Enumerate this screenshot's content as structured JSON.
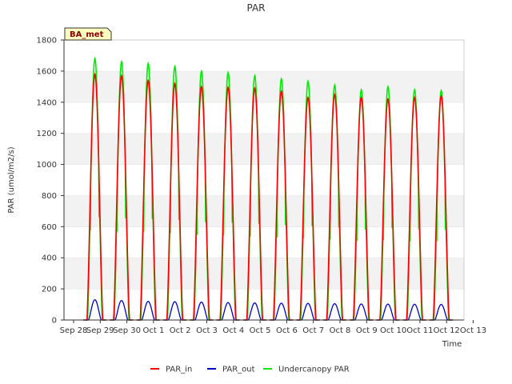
{
  "chart_data": {
    "type": "line",
    "title": "PAR",
    "xlabel": "Time",
    "ylabel": "PAR (umol/m2/s)",
    "badge": "BA_met",
    "x_tick_labels": [
      "Sep 28",
      "Sep 29",
      "Sep 30",
      "Oct 1",
      "Oct 2",
      "Oct 3",
      "Oct 4",
      "Oct 5",
      "Oct 6",
      "Oct 7",
      "Oct 8",
      "Oct 9",
      "Oct 10",
      "Oct 11",
      "Oct 12",
      "Oct 13"
    ],
    "y_ticks": [
      0,
      200,
      400,
      600,
      800,
      1000,
      1200,
      1400,
      1600,
      1800
    ],
    "ylim": [
      0,
      1800
    ],
    "xlim_days": [
      0,
      15
    ],
    "grid": "horizontal bands",
    "legend_position": "bottom",
    "series": [
      {
        "name": "PAR_in",
        "color": "#ff0000",
        "daily_peak_day": [
          0.8,
          1.8,
          2.8,
          3.8,
          4.8,
          5.8,
          6.8,
          7.8,
          8.8,
          9.8,
          10.8,
          11.8,
          12.8,
          13.8
        ],
        "daily_peak_value": [
          1580,
          1570,
          1540,
          1520,
          1500,
          1495,
          1490,
          1470,
          1430,
          1450,
          1430,
          1420,
          1430,
          1440
        ]
      },
      {
        "name": "PAR_out",
        "color": "#0000cc",
        "daily_peak_day": [
          0.8,
          1.8,
          2.8,
          3.8,
          4.8,
          5.8,
          6.8,
          7.8,
          8.8,
          9.8,
          10.8,
          11.8,
          12.8,
          13.8
        ],
        "daily_peak_value": [
          130,
          125,
          120,
          118,
          115,
          112,
          110,
          108,
          107,
          105,
          103,
          102,
          101,
          100
        ]
      },
      {
        "name": "Undercanopy PAR",
        "color": "#00ee00",
        "daily_peak_day": [
          0.8,
          1.8,
          2.8,
          3.8,
          4.8,
          5.8,
          6.8,
          7.8,
          8.8,
          9.8,
          10.8,
          11.8,
          12.8,
          13.8
        ],
        "daily_peak_value": [
          1680,
          1660,
          1650,
          1630,
          1600,
          1590,
          1570,
          1550,
          1535,
          1510,
          1480,
          1500,
          1480,
          1475
        ]
      }
    ]
  }
}
